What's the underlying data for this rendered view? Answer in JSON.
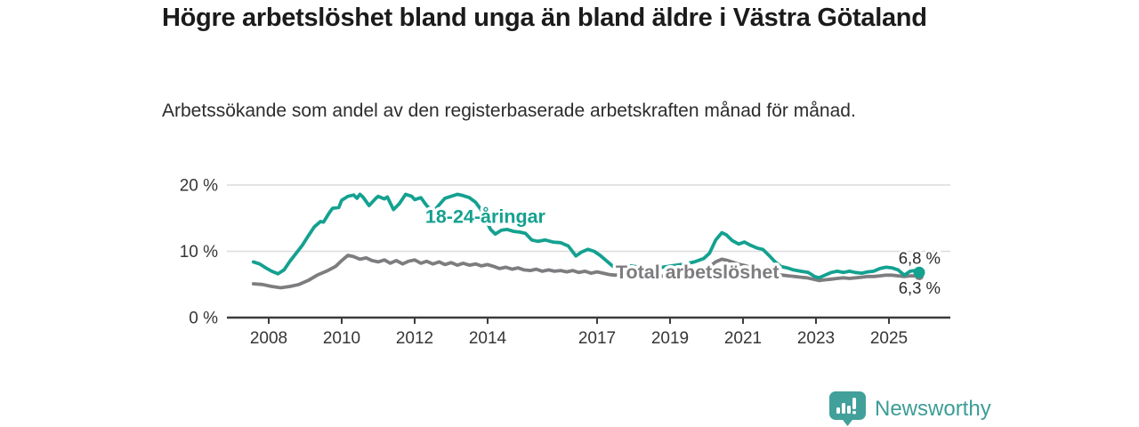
{
  "header": {
    "title": "Högre arbetslöshet bland unga än bland äldre i Västra Götaland",
    "subtitle": "Arbetssökande som andel av den registerbaserade arbetskraften månad för månad."
  },
  "branding": {
    "logo_text": "Newsworthy",
    "logo_color": "#3c9d96",
    "logo_icon": "bar-chart-speech-bubble"
  },
  "chart_data": {
    "type": "line",
    "title": "Högre arbetslöshet bland unga än bland äldre i Västra Götaland",
    "xlabel": "",
    "ylabel": "",
    "unit": "%",
    "grid": "horizontal",
    "x_axis": {
      "ticks": [
        2008,
        2010,
        2012,
        2014,
        2017,
        2019,
        2021,
        2023,
        2025
      ]
    },
    "y_axis": {
      "tick_values": [
        0,
        10,
        20
      ],
      "tick_labels": [
        "0 %",
        "10 %",
        "20 %"
      ],
      "range": [
        0,
        22
      ]
    },
    "style": {
      "grid_color": "#dcdcdc",
      "axis_color": "#3c3c3c",
      "tick_label_color": "#363636",
      "value_label_color": "#2b2b2b"
    },
    "series": [
      {
        "id": "youth",
        "name": "18-24-åringar",
        "color": "#14a190",
        "end_label": "6,8 %",
        "end_value": 6.8,
        "label_anchor": {
          "t": 2012.29,
          "v": 14.3
        },
        "points": [
          [
            2007.58,
            8.4
          ],
          [
            2007.75,
            8.1
          ],
          [
            2007.92,
            7.5
          ],
          [
            2008.08,
            7.0
          ],
          [
            2008.25,
            6.6
          ],
          [
            2008.42,
            7.2
          ],
          [
            2008.58,
            8.5
          ],
          [
            2008.75,
            9.7
          ],
          [
            2008.92,
            10.9
          ],
          [
            2009.08,
            12.3
          ],
          [
            2009.25,
            13.7
          ],
          [
            2009.42,
            14.5
          ],
          [
            2009.5,
            14.4
          ],
          [
            2009.67,
            15.9
          ],
          [
            2009.75,
            16.5
          ],
          [
            2009.92,
            16.6
          ],
          [
            2010.0,
            17.7
          ],
          [
            2010.17,
            18.3
          ],
          [
            2010.33,
            18.5
          ],
          [
            2010.42,
            18.0
          ],
          [
            2010.5,
            18.6
          ],
          [
            2010.58,
            18.2
          ],
          [
            2010.75,
            16.9
          ],
          [
            2010.92,
            17.9
          ],
          [
            2011.0,
            18.3
          ],
          [
            2011.17,
            17.9
          ],
          [
            2011.25,
            18.2
          ],
          [
            2011.42,
            16.3
          ],
          [
            2011.58,
            17.2
          ],
          [
            2011.75,
            18.6
          ],
          [
            2011.92,
            18.3
          ],
          [
            2012.0,
            17.8
          ],
          [
            2012.17,
            18.1
          ],
          [
            2012.33,
            16.9
          ],
          [
            2012.5,
            15.9
          ],
          [
            2012.67,
            17.0
          ],
          [
            2012.83,
            18.0
          ],
          [
            2013.0,
            18.3
          ],
          [
            2013.17,
            18.6
          ],
          [
            2013.33,
            18.4
          ],
          [
            2013.5,
            18.1
          ],
          [
            2013.67,
            17.4
          ],
          [
            2013.83,
            16.2
          ],
          [
            2013.96,
            14.6
          ],
          [
            2014.08,
            13.3
          ],
          [
            2014.21,
            12.6
          ],
          [
            2014.38,
            13.2
          ],
          [
            2014.54,
            13.3
          ],
          [
            2014.71,
            13.0
          ],
          [
            2014.88,
            12.9
          ],
          [
            2015.04,
            12.7
          ],
          [
            2015.21,
            11.7
          ],
          [
            2015.38,
            11.5
          ],
          [
            2015.58,
            11.7
          ],
          [
            2015.79,
            11.4
          ],
          [
            2016.0,
            11.3
          ],
          [
            2016.21,
            10.8
          ],
          [
            2016.42,
            9.3
          ],
          [
            2016.58,
            9.9
          ],
          [
            2016.75,
            10.3
          ],
          [
            2016.92,
            10.0
          ],
          [
            2017.08,
            9.4
          ],
          [
            2017.25,
            8.6
          ],
          [
            2017.42,
            7.8
          ],
          [
            2017.54,
            7.3
          ],
          [
            2017.71,
            8.0
          ],
          [
            2017.92,
            7.8
          ],
          [
            2018.17,
            7.6
          ],
          [
            2018.42,
            7.4
          ],
          [
            2018.67,
            7.5
          ],
          [
            2018.92,
            7.7
          ],
          [
            2019.17,
            7.9
          ],
          [
            2019.42,
            8.1
          ],
          [
            2019.67,
            8.4
          ],
          [
            2019.92,
            8.9
          ],
          [
            2020.08,
            9.7
          ],
          [
            2020.25,
            11.7
          ],
          [
            2020.42,
            12.8
          ],
          [
            2020.54,
            12.5
          ],
          [
            2020.71,
            11.6
          ],
          [
            2020.88,
            11.1
          ],
          [
            2021.04,
            11.4
          ],
          [
            2021.21,
            10.9
          ],
          [
            2021.38,
            10.5
          ],
          [
            2021.54,
            10.3
          ],
          [
            2021.71,
            9.4
          ],
          [
            2021.88,
            8.4
          ],
          [
            2022.04,
            7.7
          ],
          [
            2022.21,
            7.5
          ],
          [
            2022.38,
            7.2
          ],
          [
            2022.58,
            7.0
          ],
          [
            2022.79,
            6.8
          ],
          [
            2022.96,
            6.2
          ],
          [
            2023.08,
            6.0
          ],
          [
            2023.25,
            6.4
          ],
          [
            2023.42,
            6.8
          ],
          [
            2023.58,
            7.0
          ],
          [
            2023.75,
            6.8
          ],
          [
            2023.92,
            7.0
          ],
          [
            2024.08,
            6.8
          ],
          [
            2024.25,
            6.7
          ],
          [
            2024.42,
            6.9
          ],
          [
            2024.58,
            7.0
          ],
          [
            2024.75,
            7.4
          ],
          [
            2024.92,
            7.6
          ],
          [
            2025.08,
            7.5
          ],
          [
            2025.25,
            7.2
          ],
          [
            2025.42,
            6.4
          ],
          [
            2025.58,
            7.0
          ],
          [
            2025.71,
            7.1
          ],
          [
            2025.83,
            6.8
          ]
        ]
      },
      {
        "id": "total",
        "name": "Total arbetslöshet",
        "color": "#7d7d80",
        "end_label": "6,3 %",
        "end_value": 6.3,
        "label_anchor": {
          "t": 2017.51,
          "v": 5.9
        },
        "points": [
          [
            2007.58,
            5.1
          ],
          [
            2007.83,
            5.0
          ],
          [
            2008.08,
            4.7
          ],
          [
            2008.33,
            4.5
          ],
          [
            2008.58,
            4.7
          ],
          [
            2008.83,
            5.0
          ],
          [
            2009.08,
            5.6
          ],
          [
            2009.33,
            6.4
          ],
          [
            2009.58,
            7.0
          ],
          [
            2009.83,
            7.7
          ],
          [
            2010.0,
            8.6
          ],
          [
            2010.17,
            9.4
          ],
          [
            2010.33,
            9.2
          ],
          [
            2010.5,
            8.8
          ],
          [
            2010.67,
            9.0
          ],
          [
            2010.83,
            8.6
          ],
          [
            2011.0,
            8.4
          ],
          [
            2011.17,
            8.7
          ],
          [
            2011.33,
            8.2
          ],
          [
            2011.5,
            8.6
          ],
          [
            2011.67,
            8.1
          ],
          [
            2011.83,
            8.5
          ],
          [
            2012.0,
            8.7
          ],
          [
            2012.17,
            8.2
          ],
          [
            2012.33,
            8.5
          ],
          [
            2012.5,
            8.1
          ],
          [
            2012.67,
            8.4
          ],
          [
            2012.83,
            8.0
          ],
          [
            2013.0,
            8.3
          ],
          [
            2013.17,
            7.9
          ],
          [
            2013.33,
            8.2
          ],
          [
            2013.5,
            7.9
          ],
          [
            2013.67,
            8.1
          ],
          [
            2013.83,
            7.8
          ],
          [
            2014.0,
            8.0
          ],
          [
            2014.17,
            7.7
          ],
          [
            2014.33,
            7.4
          ],
          [
            2014.5,
            7.6
          ],
          [
            2014.67,
            7.3
          ],
          [
            2014.83,
            7.5
          ],
          [
            2015.0,
            7.2
          ],
          [
            2015.17,
            7.1
          ],
          [
            2015.33,
            7.3
          ],
          [
            2015.5,
            7.0
          ],
          [
            2015.67,
            7.2
          ],
          [
            2015.83,
            7.0
          ],
          [
            2016.0,
            7.1
          ],
          [
            2016.17,
            6.9
          ],
          [
            2016.33,
            7.1
          ],
          [
            2016.5,
            6.8
          ],
          [
            2016.67,
            7.0
          ],
          [
            2016.83,
            6.7
          ],
          [
            2017.0,
            6.9
          ],
          [
            2017.17,
            6.7
          ],
          [
            2017.33,
            6.5
          ],
          [
            2017.5,
            6.4
          ],
          [
            2017.67,
            6.6
          ],
          [
            2017.83,
            6.4
          ],
          [
            2018.08,
            6.3
          ],
          [
            2018.33,
            6.4
          ],
          [
            2018.58,
            6.2
          ],
          [
            2018.83,
            6.3
          ],
          [
            2019.08,
            6.3
          ],
          [
            2019.33,
            6.4
          ],
          [
            2019.58,
            6.6
          ],
          [
            2019.83,
            6.9
          ],
          [
            2020.08,
            7.7
          ],
          [
            2020.25,
            8.4
          ],
          [
            2020.42,
            8.8
          ],
          [
            2020.58,
            8.6
          ],
          [
            2020.75,
            8.3
          ],
          [
            2020.92,
            8.0
          ],
          [
            2021.08,
            7.8
          ],
          [
            2021.25,
            7.5
          ],
          [
            2021.42,
            7.2
          ],
          [
            2021.58,
            6.9
          ],
          [
            2021.75,
            6.7
          ],
          [
            2021.92,
            6.5
          ],
          [
            2022.08,
            6.4
          ],
          [
            2022.25,
            6.3
          ],
          [
            2022.42,
            6.2
          ],
          [
            2022.58,
            6.1
          ],
          [
            2022.75,
            6.0
          ],
          [
            2022.92,
            5.8
          ],
          [
            2023.08,
            5.6
          ],
          [
            2023.25,
            5.7
          ],
          [
            2023.42,
            5.8
          ],
          [
            2023.58,
            5.9
          ],
          [
            2023.75,
            6.0
          ],
          [
            2023.92,
            5.9
          ],
          [
            2024.08,
            6.0
          ],
          [
            2024.25,
            6.1
          ],
          [
            2024.42,
            6.2
          ],
          [
            2024.58,
            6.2
          ],
          [
            2024.75,
            6.3
          ],
          [
            2024.92,
            6.4
          ],
          [
            2025.08,
            6.4
          ],
          [
            2025.25,
            6.3
          ],
          [
            2025.42,
            6.2
          ],
          [
            2025.58,
            6.3
          ],
          [
            2025.75,
            6.3
          ],
          [
            2025.83,
            6.3
          ]
        ]
      }
    ]
  }
}
